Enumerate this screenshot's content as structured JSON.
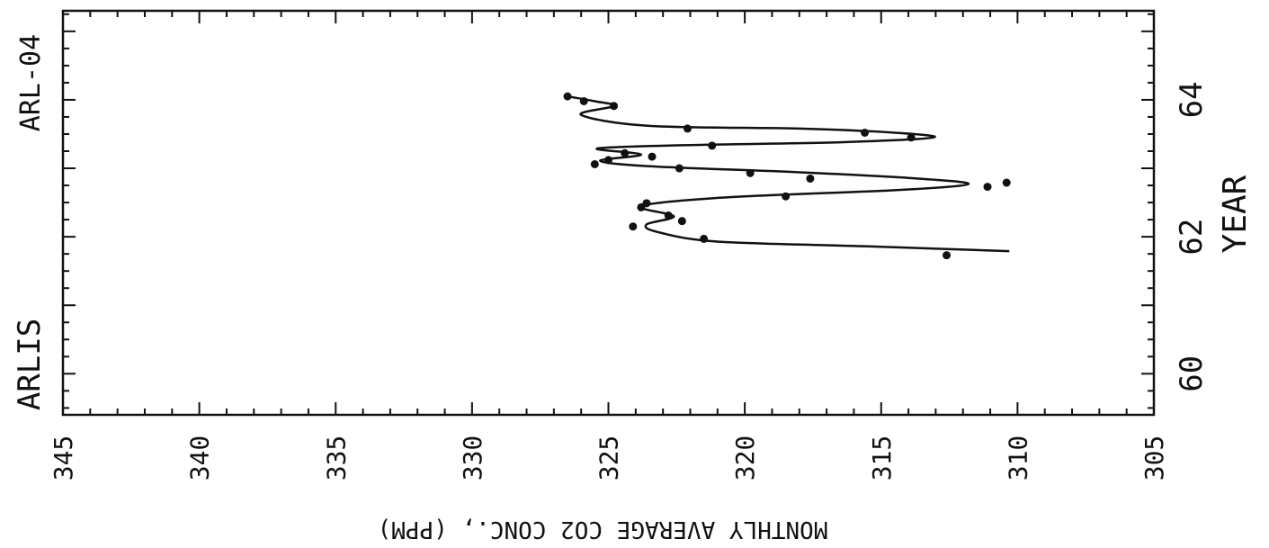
{
  "chart_data": {
    "type": "scatter",
    "station_labels": [
      "ARL-04",
      "ARLIS"
    ],
    "xlabel": "MONTHLY AVERAGE CO2 CONC., (PPM)",
    "ylabel": "YEAR",
    "x_ticks": [
      "345",
      "340",
      "335",
      "330",
      "325",
      "320",
      "315",
      "310",
      "305"
    ],
    "y_ticks": [
      "60",
      "62",
      "64"
    ],
    "xlim": [
      345,
      305
    ],
    "ylim": [
      59.4,
      65.3
    ],
    "grid": false,
    "series": [
      {
        "kind": "points",
        "points": [
          {
            "x": 326.5,
            "y": 64.05
          },
          {
            "x": 325.9,
            "y": 63.98
          },
          {
            "x": 324.8,
            "y": 63.91
          },
          {
            "x": 322.1,
            "y": 63.58
          },
          {
            "x": 315.6,
            "y": 63.52
          },
          {
            "x": 313.9,
            "y": 63.45
          },
          {
            "x": 321.2,
            "y": 63.33
          },
          {
            "x": 324.4,
            "y": 63.22
          },
          {
            "x": 323.4,
            "y": 63.17
          },
          {
            "x": 325.0,
            "y": 63.12
          },
          {
            "x": 325.5,
            "y": 63.06
          },
          {
            "x": 322.4,
            "y": 63.0
          },
          {
            "x": 319.8,
            "y": 62.93
          },
          {
            "x": 317.6,
            "y": 62.85
          },
          {
            "x": 310.4,
            "y": 62.79
          },
          {
            "x": 311.1,
            "y": 62.73
          },
          {
            "x": 318.5,
            "y": 62.59
          },
          {
            "x": 323.6,
            "y": 62.49
          },
          {
            "x": 323.8,
            "y": 62.43
          },
          {
            "x": 322.8,
            "y": 62.31
          },
          {
            "x": 322.3,
            "y": 62.23
          },
          {
            "x": 324.1,
            "y": 62.15
          },
          {
            "x": 321.5,
            "y": 61.97
          },
          {
            "x": 312.6,
            "y": 61.73
          }
        ]
      },
      {
        "kind": "curve",
        "points": [
          {
            "x": 326.5,
            "y": 64.05
          },
          {
            "x": 325.5,
            "y": 63.98
          },
          {
            "x": 324.8,
            "y": 63.91
          },
          {
            "x": 326.0,
            "y": 63.78
          },
          {
            "x": 323.5,
            "y": 63.62
          },
          {
            "x": 318.0,
            "y": 63.58
          },
          {
            "x": 314.5,
            "y": 63.52
          },
          {
            "x": 313.1,
            "y": 63.45
          },
          {
            "x": 316.5,
            "y": 63.38
          },
          {
            "x": 322.0,
            "y": 63.34
          },
          {
            "x": 325.4,
            "y": 63.29
          },
          {
            "x": 323.8,
            "y": 63.2
          },
          {
            "x": 325.3,
            "y": 63.11
          },
          {
            "x": 323.5,
            "y": 63.03
          },
          {
            "x": 318.5,
            "y": 62.95
          },
          {
            "x": 314.0,
            "y": 62.86
          },
          {
            "x": 311.8,
            "y": 62.77
          },
          {
            "x": 314.5,
            "y": 62.68
          },
          {
            "x": 320.5,
            "y": 62.58
          },
          {
            "x": 323.8,
            "y": 62.45
          },
          {
            "x": 322.6,
            "y": 62.3
          },
          {
            "x": 323.6,
            "y": 62.18
          },
          {
            "x": 323.2,
            "y": 62.07
          },
          {
            "x": 321.0,
            "y": 61.93
          },
          {
            "x": 315.5,
            "y": 61.86
          },
          {
            "x": 310.3,
            "y": 61.79
          }
        ]
      }
    ]
  }
}
